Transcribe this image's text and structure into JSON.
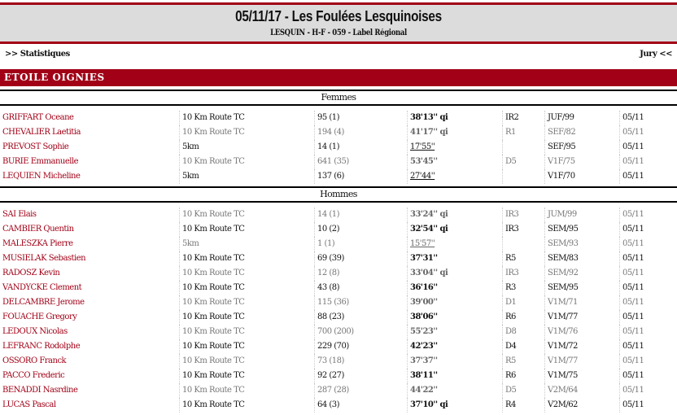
{
  "header": {
    "title": "05/11/17 - Les Foulées Lesquinoises",
    "subtitle": "LESQUIN - H-F - 059 - Label Régional"
  },
  "nav": {
    "left": ">> Statistiques",
    "right": "Jury <<"
  },
  "club": "ETOILE OIGNIES",
  "sections": [
    {
      "label": "Femmes",
      "rows": [
        [
          "GRIFFART Oceane",
          "10 Km Route TC",
          "95 (1)",
          "38'13'' qi",
          "IR2",
          "JUF/99",
          "05/11"
        ],
        [
          "CHEVALIER Laetitia",
          "10 Km Route TC",
          "194 (4)",
          "41'17'' qi",
          "R1",
          "SEF/82",
          "05/11"
        ],
        [
          "PREVOST Sophie",
          "5km",
          "14 (1)",
          "17'55''",
          "",
          "SEF/95",
          "05/11"
        ],
        [
          "BURIE Emmanuelle",
          "10 Km Route TC",
          "641 (35)",
          "53'45''",
          "D5",
          "V1F/75",
          "05/11"
        ],
        [
          "LEQUIEN Micheline",
          "5km",
          "137 (6)",
          "27'44''",
          "",
          "V1F/70",
          "05/11"
        ]
      ]
    },
    {
      "label": "Hommes",
      "rows": [
        [
          "SAI Elais",
          "10 Km Route TC",
          "14 (1)",
          "33'24'' qi",
          "IR3",
          "JUM/99",
          "05/11"
        ],
        [
          "CAMBIER Quentin",
          "10 Km Route TC",
          "10 (2)",
          "32'54'' qi",
          "IR3",
          "SEM/95",
          "05/11"
        ],
        [
          "MALESZKA Pierre",
          "5km",
          "1 (1)",
          "15'57''",
          "",
          "SEM/93",
          "05/11"
        ],
        [
          "MUSIELAK Sebastien",
          "10 Km Route TC",
          "69 (39)",
          "37'31''",
          "R5",
          "SEM/83",
          "05/11"
        ],
        [
          "RADOSZ Kevin",
          "10 Km Route TC",
          "12 (8)",
          "33'04'' qi",
          "IR3",
          "SEM/92",
          "05/11"
        ],
        [
          "VANDYCKE Clement",
          "10 Km Route TC",
          "43 (8)",
          "36'16''",
          "R3",
          "SEM/95",
          "05/11"
        ],
        [
          "DELCAMBRE Jerome",
          "10 Km Route TC",
          "115 (36)",
          "39'00''",
          "D1",
          "V1M/71",
          "05/11"
        ],
        [
          "FOUACHE Gregory",
          "10 Km Route TC",
          "88 (23)",
          "38'06''",
          "R6",
          "V1M/77",
          "05/11"
        ],
        [
          "LEDOUX Nicolas",
          "10 Km Route TC",
          "700 (200)",
          "55'23''",
          "D8",
          "V1M/76",
          "05/11"
        ],
        [
          "LEFRANC Rodolphe",
          "10 Km Route TC",
          "229 (70)",
          "42'23''",
          "D4",
          "V1M/72",
          "05/11"
        ],
        [
          "OSSORO Franck",
          "10 Km Route TC",
          "73 (18)",
          "37'37''",
          "R5",
          "V1M/77",
          "05/11"
        ],
        [
          "PACCO Frederic",
          "10 Km Route TC",
          "92 (27)",
          "38'11''",
          "R6",
          "V1M/75",
          "05/11"
        ],
        [
          "BENADDI Nasrdine",
          "10 Km Route TC",
          "287 (28)",
          "44'22''",
          "D5",
          "V2M/64",
          "05/11"
        ],
        [
          "LUCAS Pascal",
          "10 Km Route TC",
          "64 (3)",
          "37'10'' qi",
          "R4",
          "V2M/62",
          "05/11"
        ]
      ]
    }
  ],
  "colors": {
    "accent": "#a10016",
    "header_bg": "#dcdcdc"
  }
}
